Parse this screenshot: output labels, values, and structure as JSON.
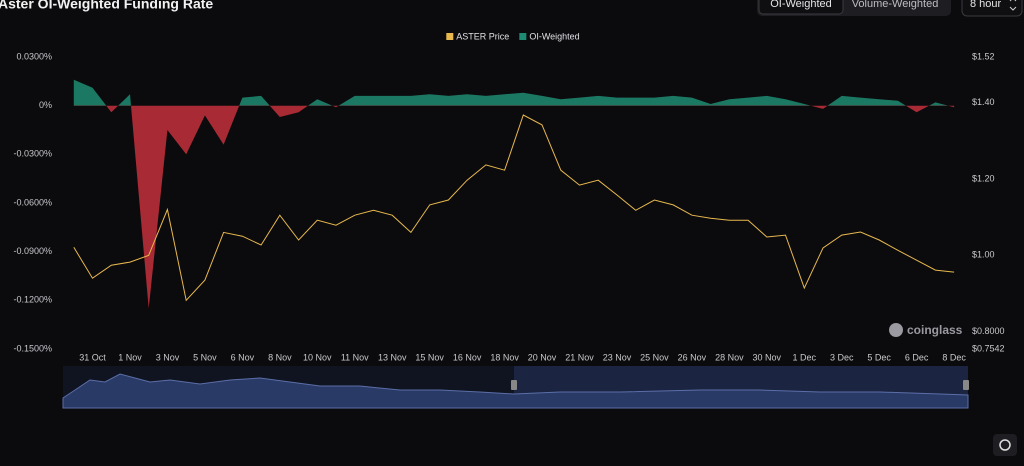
{
  "ui": {
    "tabs": [
      "OI-Weighted",
      "Volume-Weighted"
    ],
    "interval": "8 hour",
    "watermark": "coinglass"
  },
  "chart_data": {
    "type": "line-area",
    "title": "Aster OI-Weighted Funding Rate",
    "categories": [
      null,
      "31 Oct",
      null,
      "1 Nov",
      null,
      "3 Nov",
      null,
      "5 Nov",
      null,
      "6 Nov",
      null,
      "8 Nov",
      null,
      "10 Nov",
      null,
      "11 Nov",
      null,
      "13 Nov",
      null,
      "15 Nov",
      null,
      "16 Nov",
      null,
      "18 Nov",
      null,
      "20 Nov",
      null,
      "21 Nov",
      null,
      "23 Nov",
      null,
      "25 Nov",
      null,
      "26 Nov",
      null,
      "28 Nov",
      null,
      "30 Nov",
      null,
      "1 Dec",
      null,
      "3 Dec",
      null,
      "5 Dec",
      null,
      "6 Dec",
      null,
      "8 Dec"
    ],
    "series": [
      {
        "name": "ASTER Price",
        "color": "#e8b84e",
        "axis": "y2",
        "values": [
          1.021,
          0.94,
          0.974,
          0.982,
          1.0,
          1.12,
          0.882,
          0.935,
          1.06,
          1.05,
          1.027,
          1.105,
          1.04,
          1.092,
          1.079,
          1.105,
          1.118,
          1.105,
          1.06,
          1.132,
          1.145,
          1.197,
          1.237,
          1.223,
          1.368,
          1.342,
          1.223,
          1.184,
          1.197,
          1.158,
          1.118,
          1.145,
          1.132,
          1.105,
          1.097,
          1.092,
          1.092,
          1.048,
          1.053,
          0.914,
          1.019,
          1.053,
          1.061,
          1.04,
          1.013,
          0.987,
          0.961,
          0.956
        ]
      },
      {
        "name": "OI-Weighted",
        "color": "#1e8c72",
        "negative_color": "#c4303a",
        "values": [
          0.016,
          0.011,
          -0.004,
          0.007,
          -0.125,
          -0.015,
          -0.03,
          -0.006,
          -0.024,
          0.005,
          0.006,
          -0.007,
          -0.004,
          0.004,
          -0.001,
          0.006,
          0.006,
          0.006,
          0.006,
          0.007,
          0.006,
          0.007,
          0.006,
          0.007,
          0.008,
          0.006,
          0.004,
          0.005,
          0.006,
          0.005,
          0.005,
          0.005,
          0.006,
          0.005,
          0.001,
          0.004,
          0.005,
          0.006,
          0.004,
          0.001,
          -0.002,
          0.006,
          0.005,
          0.004,
          0.003,
          -0.004,
          0.002,
          -0.001
        ]
      }
    ],
    "ylim": [
      -0.15,
      0.03
    ],
    "yticks": [
      {
        "value": 0.03,
        "label": "0.0300%"
      },
      {
        "value": 0,
        "label": "0%"
      },
      {
        "value": -0.03,
        "label": "-0.0300%"
      },
      {
        "value": -0.06,
        "label": "-0.0600%"
      },
      {
        "value": -0.09,
        "label": "-0.0900%"
      },
      {
        "value": -0.12,
        "label": "-0.1200%"
      },
      {
        "value": -0.15,
        "label": "-0.1500%"
      }
    ],
    "y2lim": [
      0.7542,
      1.52
    ],
    "y2ticks": [
      {
        "value": 1.52,
        "label": "$1.52"
      },
      {
        "value": 1.4,
        "label": "$1.40"
      },
      {
        "value": 1.2,
        "label": "$1.20"
      },
      {
        "value": 1.0,
        "label": "$1.00"
      },
      {
        "value": 0.8,
        "label": "$0.8000"
      },
      {
        "value": 0.7542,
        "label": "$0.7542"
      }
    ],
    "grid": false,
    "legend": "top"
  }
}
